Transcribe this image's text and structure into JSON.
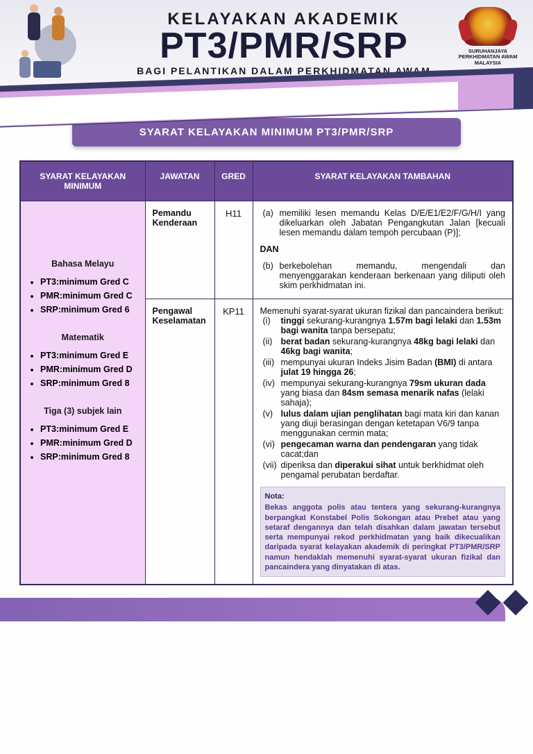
{
  "header": {
    "line1": "KELAYAKAN AKADEMIK",
    "line2": "PT3/PMR/SRP",
    "line3": "BAGI PELANTIKAN DALAM PERKHIDMATAN AWAM",
    "crest_line1": "SURUHANJAYA",
    "crest_line2": "PERKHIDMATAN AWAM",
    "crest_line3": "MALAYSIA",
    "colors": {
      "title_color": "#1b1b3a",
      "bg_gradient_top": "#e8e8f0",
      "bg_gradient_bottom": "#f8f8fa"
    }
  },
  "ribbon": {
    "text": "SYARAT KELAYAKAN MINIMUM PT3/PMR/SRP",
    "bg": "#7b5aa6",
    "fg": "#ffffff"
  },
  "table": {
    "header_bg": "#6b4a9a",
    "header_fg": "#ffffff",
    "left_bg": "#f3d6f7",
    "border": "#3a2a5a",
    "headers": {
      "c1": "SYARAT KELAYAKAN MINIMUM",
      "c2": "JAWATAN",
      "c3": "GRED",
      "c4": "SYARAT KELAYAKAN TAMBAHAN"
    },
    "left": {
      "sub1": "Bahasa Melayu",
      "bm": [
        {
          "exam": "PT3",
          "kw": "minimum",
          "grade": "Gred C"
        },
        {
          "exam": "PMR",
          "kw": "minimum",
          "grade": "Gred C"
        },
        {
          "exam": "SRP",
          "kw": "minimum",
          "grade": "Gred 6"
        }
      ],
      "sub2": "Matematik",
      "mat": [
        {
          "exam": "PT3",
          "kw": "minimum",
          "grade": "Gred E"
        },
        {
          "exam": "PMR",
          "kw": "minimum",
          "grade": "Gred D"
        },
        {
          "exam": "SRP",
          "kw": "minimum",
          "grade": "Gred 8"
        }
      ],
      "sub3": "Tiga (3) subjek lain",
      "lain": [
        {
          "exam": "PT3",
          "kw": "minimum",
          "grade": "Gred E"
        },
        {
          "exam": "PMR",
          "kw": "minimum",
          "grade": "Gred D"
        },
        {
          "exam": "SRP",
          "kw": "minimum",
          "grade": "Gred 8"
        }
      ]
    },
    "row1": {
      "jawatan": "Pemandu Kenderaan",
      "gred": "H11",
      "a_lab": "(a)",
      "a": "memiliki lesen memandu Kelas D/E/E1/E2/F/G/H/I yang dikeluarkan oleh Jabatan Pengangkutan Jalan [kecuali lesen memandu dalam tempoh percubaan (P)];",
      "dan": "DAN",
      "b_lab": "(b)",
      "b": "berkebolehan memandu, mengendali dan menyenggarakan kenderaan berkenaan yang diliputi oleh skim perkhidmatan ini."
    },
    "row2": {
      "jawatan": "Pengawal Keselamatan",
      "gred": "KP11",
      "intro": "Memenuhi syarat-syarat ukuran fizikal dan pancaindera berikut:",
      "items": [
        {
          "lab": "(i)",
          "html": "<b>tinggi</b> sekurang-kurangnya <b>1.57m bagi lelaki</b> dan <b>1.53m bagi wanita</b> tanpa bersepatu;"
        },
        {
          "lab": "(ii)",
          "html": "<b>berat badan</b> sekurang-kurangnya <b>48kg bagi lelaki</b> dan <b>46kg bagi wanita</b>;"
        },
        {
          "lab": "(iii)",
          "html": "mempunyai ukuran Indeks Jisim Badan <b>(BMI)</b> di antara <b>julat 19 hingga 26</b>;"
        },
        {
          "lab": "(iv)",
          "html": "mempunyai sekurang-kurangnya <b>79sm ukuran dada</b> yang biasa dan <b>84sm semasa menarik nafas</b> (lelaki sahaja);"
        },
        {
          "lab": "(v)",
          "html": "<b>lulus dalam ujian penglihatan</b> bagi mata kiri dan kanan yang diuji berasingan dengan ketetapan V6/9 tanpa menggunakan cermin mata;"
        },
        {
          "lab": "(vi)",
          "html": "<b>pengecaman warna dan pendengaran</b> yang tidak cacat;dan"
        },
        {
          "lab": "(vii)",
          "html": "diperiksa dan <b>diperakui sihat</b> untuk berkhidmat oleh pengamal perubatan berdaftar."
        }
      ],
      "nota_title": "Nota:",
      "nota": "Bekas anggota polis atau tentera yang sekurang-kurangnya berpangkat Konstabel Polis Sokongan atau Prebet atau yang setaraf dengannya dan telah disahkan dalam jawatan tersebut serta mempunyai rekod perkhidmatan yang baik dikecualikan daripada syarat kelayakan akademik di peringkat PT3/PMR/SRP namun hendaklah memenuhi syarat-syarat ukuran fizikal dan pancaindera yang dinyatakan di atas.",
      "nota_bg": "#e6e0ee",
      "nota_color": "#5a3a8a"
    }
  },
  "footer": {
    "bar_gradient_from": "#8264b4",
    "bar_gradient_to": "#a074c4",
    "accent": "#2b2b5a"
  }
}
